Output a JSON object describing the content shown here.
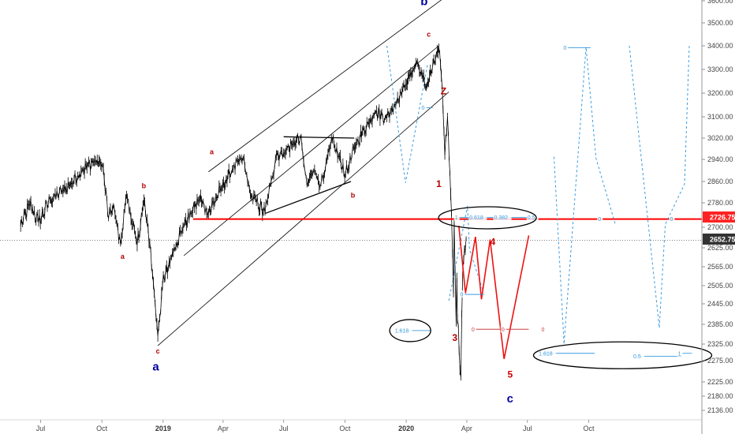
{
  "chart_data": {
    "type": "line",
    "instrument_note": "S&P 500 style daily price with Elliott wave annotations",
    "x_ticks": [
      "Jul",
      "Oct",
      "2019",
      "Apr",
      "Jul",
      "Oct",
      "2020",
      "Apr",
      "Jul",
      "Oct"
    ],
    "y_ticks": [
      2136.0,
      2180.0,
      2225.0,
      2275.0,
      2325.0,
      2385.0,
      2445.0,
      2505.0,
      2565.0,
      2625.0,
      2700.0,
      2780.0,
      2860.0,
      2940.0,
      3020.0,
      3100.0,
      3200.0,
      3300.0,
      3400.0,
      3500.0,
      3600.0
    ],
    "y_tick_labels": [
      "2136.00",
      "2180.00",
      "2225.00",
      "2275.00",
      "2325.00",
      "2385.00",
      "2445.00",
      "2505.00",
      "2565.00",
      "2625.00",
      "2700.00",
      "2780.00",
      "2860.00",
      "2940.00",
      "3020.00",
      "3100.00",
      "3200.00",
      "3300.00",
      "3400.00",
      "3500.00",
      "3600.00"
    ],
    "ylim": [
      2110,
      3620
    ],
    "price_labels": {
      "support_level": "2726.75",
      "last_price": "2652.75"
    },
    "price_series": {
      "name": "",
      "color": "#000000",
      "anchors": [
        [
          "2018-06-01",
          2705
        ],
        [
          "2018-06-15",
          2775
        ],
        [
          "2018-06-28",
          2715
        ],
        [
          "2018-07-15",
          2790
        ],
        [
          "2018-08-01",
          2820
        ],
        [
          "2018-08-15",
          2850
        ],
        [
          "2018-09-01",
          2900
        ],
        [
          "2018-09-20",
          2935
        ],
        [
          "2018-10-02",
          2920
        ],
        [
          "2018-10-11",
          2728
        ],
        [
          "2018-10-18",
          2770
        ],
        [
          "2018-10-29",
          2640
        ],
        [
          "2018-11-07",
          2810
        ],
        [
          "2018-11-23",
          2635
        ],
        [
          "2018-12-03",
          2790
        ],
        [
          "2018-12-12",
          2640
        ],
        [
          "2018-12-24",
          2350
        ],
        [
          "2018-12-31",
          2505
        ],
        [
          "2019-01-15",
          2610
        ],
        [
          "2019-02-01",
          2705
        ],
        [
          "2019-02-25",
          2795
        ],
        [
          "2019-03-10",
          2745
        ],
        [
          "2019-03-30",
          2835
        ],
        [
          "2019-04-15",
          2905
        ],
        [
          "2019-05-01",
          2945
        ],
        [
          "2019-05-12",
          2812
        ],
        [
          "2019-06-03",
          2745
        ],
        [
          "2019-06-20",
          2955
        ],
        [
          "2019-07-01",
          2965
        ],
        [
          "2019-07-26",
          3025
        ],
        [
          "2019-08-05",
          2845
        ],
        [
          "2019-08-15",
          2900
        ],
        [
          "2019-08-26",
          2850
        ],
        [
          "2019-09-12",
          3010
        ],
        [
          "2019-10-02",
          2885
        ],
        [
          "2019-10-18",
          3000
        ],
        [
          "2019-11-15",
          3120
        ],
        [
          "2019-12-03",
          3095
        ],
        [
          "2019-12-31",
          3235
        ],
        [
          "2020-01-17",
          3330
        ],
        [
          "2020-01-31",
          3225
        ],
        [
          "2020-02-19",
          3390
        ],
        [
          "2020-02-24",
          3225
        ],
        [
          "2020-02-28",
          2955
        ],
        [
          "2020-03-03",
          3100
        ],
        [
          "2020-03-09",
          2745
        ],
        [
          "2020-03-12",
          2480
        ],
        [
          "2020-03-13",
          2715
        ],
        [
          "2020-03-16",
          2390
        ],
        [
          "2020-03-17",
          2530
        ],
        [
          "2020-03-18",
          2400
        ],
        [
          "2020-03-23",
          2237
        ],
        [
          "2020-03-26",
          2560
        ],
        [
          "2020-03-31",
          2660
        ]
      ]
    },
    "support_line": {
      "y": 2726.75,
      "from": "2019-02-15",
      "color": "#ff0000"
    },
    "last_price_line": {
      "y": 2652.75
    },
    "channel_lines": [
      {
        "from": [
          "2018-12-24",
          2320
        ],
        "to": [
          "2020-03-05",
          3205
        ]
      },
      {
        "from": [
          "2019-02-01",
          2600
        ],
        "to": [
          "2020-02-19",
          3400
        ]
      },
      {
        "from": [
          "2019-03-10",
          2895
        ],
        "to": [
          "2020-03-01",
          3620
        ]
      }
    ],
    "pattern_lines": [
      {
        "from": [
          "2019-06-03",
          2745
        ],
        "to": [
          "2019-10-10",
          2860
        ]
      },
      {
        "from": [
          "2019-07-01",
          3025
        ],
        "to": [
          "2019-10-15",
          3020
        ]
      }
    ],
    "wave_labels": [
      {
        "text": "b",
        "date": "2020-01-28",
        "y": 3580,
        "color": "#0000a0",
        "size": "large"
      },
      {
        "text": "c",
        "date": "2020-02-04",
        "y": 3440,
        "color": "#b00000",
        "size": "small"
      },
      {
        "text": "Z",
        "date": "2020-02-26",
        "y": 3195,
        "color": "#b00000",
        "size": "medium"
      },
      {
        "text": "1",
        "date": "2020-02-19",
        "y": 2840,
        "color": "#b00000",
        "size": "medium"
      },
      {
        "text": "3",
        "date": "2020-03-14",
        "y": 2335,
        "color": "#b00000",
        "size": "medium"
      },
      {
        "text": "4",
        "date": "2020-05-10",
        "y": 2635,
        "color": "#d00000",
        "size": "medium"
      },
      {
        "text": "5",
        "date": "2020-06-05",
        "y": 2235,
        "color": "#d00000",
        "size": "medium"
      },
      {
        "text": "c",
        "date": "2020-06-05",
        "y": 2160,
        "color": "#0000a0",
        "size": "large"
      },
      {
        "text": "a",
        "date": "2018-12-21",
        "y": 2252,
        "color": "#0000a0",
        "size": "large"
      },
      {
        "text": "c",
        "date": "2018-12-24",
        "y": 2297,
        "color": "#b00000",
        "size": "small"
      },
      {
        "text": "b",
        "date": "2018-12-03",
        "y": 2835,
        "color": "#b00000",
        "size": "small"
      },
      {
        "text": "a",
        "date": "2018-11-01",
        "y": 2590,
        "color": "#b00000",
        "size": "small"
      },
      {
        "text": "a",
        "date": "2019-03-15",
        "y": 2960,
        "color": "#b00000",
        "size": "small"
      },
      {
        "text": "b",
        "date": "2019-10-13",
        "y": 2800,
        "color": "#b00000",
        "size": "small"
      }
    ],
    "projection_red": {
      "color": "#ee1111",
      "points": [
        [
          "2020-03-20",
          2705
        ],
        [
          "2020-03-30",
          2480
        ],
        [
          "2020-04-14",
          2665
        ],
        [
          "2020-04-23",
          2460
        ],
        [
          "2020-05-06",
          2655
        ],
        [
          "2020-05-27",
          2280
        ],
        [
          "2020-07-03",
          2670
        ]
      ]
    },
    "projection_blue": {
      "color": "#3a9adf",
      "paths": [
        [
          [
            "2019-12-03",
            3400
          ],
          [
            "2019-12-31",
            2855
          ],
          [
            "2020-02-02",
            3320
          ]
        ],
        [
          [
            "2020-03-05",
            2455
          ],
          [
            "2020-04-02",
            2770
          ],
          [
            "2020-04-05",
            2620
          ],
          [
            "2020-04-25",
            2490
          ]
        ],
        [
          [
            "2020-08-10",
            2950
          ],
          [
            "2020-08-25",
            2325
          ],
          [
            "2020-09-27",
            3395
          ],
          [
            "2020-10-12",
            2945
          ],
          [
            "2020-11-10",
            2710
          ]
        ],
        [
          [
            "2020-12-01",
            3400
          ],
          [
            "2021-01-15",
            2375
          ]
        ],
        [
          [
            "2021-01-15",
            2375
          ],
          [
            "2021-01-24",
            2710
          ],
          [
            "2021-02-22",
            2850
          ],
          [
            "2021-03-01",
            3400
          ]
        ]
      ]
    },
    "fib_marks": [
      {
        "text": "0",
        "date": "2020-01-24",
        "y": 3138,
        "color": "#3a9adf",
        "line_to": "2020-02-10"
      },
      {
        "text": "0",
        "date": "2020-08-24",
        "y": 3392,
        "color": "#3a9adf",
        "line_to": "2020-10-04"
      },
      {
        "text": "1",
        "date": "2020-03-14",
        "y": 2732,
        "color": "#3a9adf",
        "line_to": "2020-07-01"
      },
      {
        "text": "0.618",
        "date": "2020-04-05",
        "y": 2732,
        "color": "#3a9adf",
        "line_to": ""
      },
      {
        "text": "0.382",
        "date": "2020-05-12",
        "y": 2732,
        "color": "#3a9adf",
        "line_to": ""
      },
      {
        "text": "0.5",
        "date": "2020-07-01",
        "y": 2732,
        "color": "#3a9adf",
        "line_to": ""
      },
      {
        "text": "0",
        "date": "2020-10-15",
        "y": 2727,
        "color": "#3a9adf",
        "line_to": ""
      },
      {
        "text": "0",
        "date": "2021-01-31",
        "y": 2727,
        "color": "#3a9adf",
        "line_to": ""
      },
      {
        "text": "0",
        "date": "2020-03-22",
        "y": 2476,
        "color": "#3a9adf",
        "line_to": "2020-04-27"
      },
      {
        "text": "0",
        "date": "2020-04-08",
        "y": 2370,
        "color": "#d04040",
        "line_to": "2020-07-03"
      },
      {
        "text": "0",
        "date": "2020-05-23",
        "y": 2370,
        "color": "#d04040",
        "line_to": ""
      },
      {
        "text": "0",
        "date": "2020-07-22",
        "y": 2370,
        "color": "#d04040",
        "line_to": ""
      },
      {
        "text": "1.618",
        "date": "2019-12-15",
        "y": 2366,
        "color": "#3a9adf",
        "line_to": "2020-02-06"
      },
      {
        "text": "1.618",
        "date": "2020-07-18",
        "y": 2297,
        "color": "#3a9adf",
        "line_to": "2020-10-10"
      },
      {
        "text": "0.5",
        "date": "2020-12-07",
        "y": 2288,
        "color": "#3a9adf",
        "line_to": "2021-02-18"
      },
      {
        "text": "1",
        "date": "2021-02-12",
        "y": 2297,
        "color": "#3a9adf",
        "line_to": "2021-03-05"
      }
    ],
    "ellipses": [
      {
        "center_date": "2020-05-02",
        "center_y": 2731,
        "rx": 62,
        "ry": 14
      },
      {
        "center_date": "2020-01-07",
        "center_y": 2366,
        "rx": 26,
        "ry": 14
      },
      {
        "center_date": "2020-11-21",
        "center_y": 2291,
        "rx": 113,
        "ry": 17
      }
    ],
    "x_domain": [
      "2018-05-01",
      "2021-03-20"
    ],
    "grid": false,
    "legend": "none"
  }
}
